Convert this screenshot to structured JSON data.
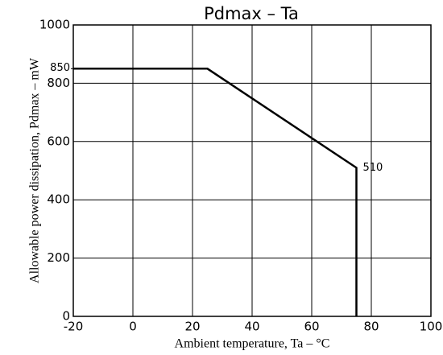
{
  "chart_data": {
    "type": "line",
    "title": "Pdmax – Ta",
    "x_label": "Ambient temperature, Ta – °C",
    "y_label": "Allowable power dissipation, Pdmax – mW",
    "series": [
      {
        "name": "Pdmax",
        "color": "#000000",
        "x": [
          -20,
          25,
          75,
          75
        ],
        "values": [
          850,
          850,
          510,
          0
        ]
      }
    ],
    "annotations": [
      {
        "text": "850",
        "y": 850
      },
      {
        "text": "510",
        "x": 75,
        "y": 510
      }
    ],
    "xlim": [
      -20,
      100
    ],
    "xticks": [
      -20,
      0,
      20,
      40,
      60,
      80,
      100
    ],
    "ylim": [
      0,
      1000
    ],
    "yticks": [
      0,
      200,
      400,
      600,
      800,
      1000
    ],
    "grid": true
  }
}
